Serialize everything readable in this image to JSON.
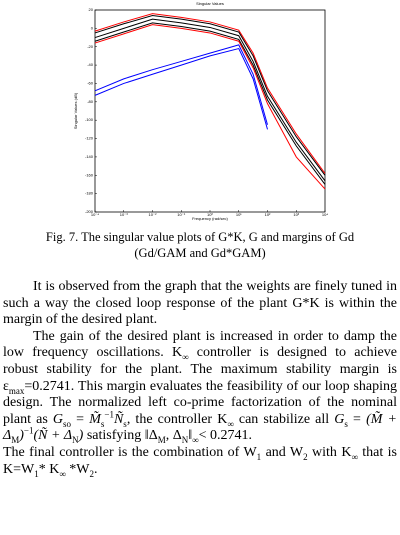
{
  "figure": {
    "type": "line",
    "title": "Singular Values",
    "xlabel": "Frequency (rad/sec)",
    "ylabel": "Singular Values (dB)",
    "x": [
      -4,
      -3,
      -2,
      -1,
      0,
      1,
      1.5,
      2,
      3,
      4
    ],
    "xlim": [
      -4,
      4
    ],
    "ylim": [
      -200,
      20
    ],
    "xticks": [
      {
        "value": -4,
        "label": "10⁻⁴"
      },
      {
        "value": -3,
        "label": "10⁻³"
      },
      {
        "value": -2,
        "label": "10⁻²"
      },
      {
        "value": -1,
        "label": "10⁻¹"
      },
      {
        "value": 0,
        "label": "10⁰"
      },
      {
        "value": 1,
        "label": "10¹"
      },
      {
        "value": 2,
        "label": "10²"
      },
      {
        "value": 3,
        "label": "10³"
      },
      {
        "value": 4,
        "label": "10⁴"
      }
    ],
    "yticks": [
      -200,
      -180,
      -160,
      -140,
      -120,
      -100,
      -80,
      -60,
      -40,
      -20,
      0,
      20
    ],
    "series": [
      {
        "color": "#ff0000",
        "values": [
          -3,
          7,
          16,
          12,
          7,
          -2,
          -27,
          -65,
          -115,
          -158
        ]
      },
      {
        "color": "#000000",
        "values": [
          -5,
          5,
          14,
          10,
          5,
          -4,
          -30,
          -68,
          -118,
          -160
        ]
      },
      {
        "color": "#000000",
        "values": [
          -10,
          0,
          10,
          6,
          1,
          -8,
          -36,
          -74,
          -124,
          -166
        ]
      },
      {
        "color": "#000000",
        "values": [
          -14,
          -4,
          6,
          2,
          -3,
          -12,
          -40,
          -78,
          -128,
          -170
        ]
      },
      {
        "color": "#ff0000",
        "values": [
          -16,
          -6,
          4,
          0,
          -5,
          -14,
          -43,
          -82,
          -140,
          -175
        ]
      },
      {
        "color": "#0000ff",
        "values": [
          -68,
          -55,
          -45,
          -36,
          -27,
          -18,
          -50,
          -105,
          null,
          null
        ]
      },
      {
        "color": "#0000ff",
        "values": [
          -73,
          -60,
          -50,
          -40,
          -30,
          -22,
          -55,
          -110,
          null,
          null
        ]
      }
    ]
  },
  "caption": [
    "Fig. 7. The singular value plots of G*K, G and margins of Gd",
    "(Gd/GAM and Gd*GAM)"
  ],
  "paragraphs": [
    {
      "runs": [
        {
          "text": "It is observed from the graph that the weights are finely tuned in such a way the closed loop response of the plant G*K is within the margin of the desired plant."
        }
      ]
    },
    {
      "runs": [
        {
          "text": "The gain of the desired plant is increased in order to damp the low frequency oscillations. K"
        },
        {
          "text": "∞",
          "style": "sub"
        },
        {
          "text": " controller is designed to achieve robust stability for the plant. The maximum stability margin is ε"
        },
        {
          "text": "max",
          "style": "sub"
        },
        {
          "text": "=0.2741. This margin evaluates the feasibility of our loop shaping design. The normalized left co-prime factorization of the nominal plant as "
        },
        {
          "text": "G",
          "style": "italic"
        },
        {
          "text": "so",
          "style": "sub"
        },
        {
          "text": " = "
        },
        {
          "text": "M̃",
          "style": "italic"
        },
        {
          "text": "s",
          "style": "sub"
        },
        {
          "text": "−1",
          "style": "sup"
        },
        {
          "text": "Ñ",
          "style": "italic"
        },
        {
          "text": "s",
          "style": "sub"
        },
        {
          "text": ", the controller K"
        },
        {
          "text": "∞",
          "style": "sub"
        },
        {
          "text": " can stabilize all "
        },
        {
          "text": "G",
          "style": "italic"
        },
        {
          "text": "s",
          "style": "sub"
        },
        {
          "text": " = "
        },
        {
          "text": "(M̃ + Δ",
          "style": "italic"
        },
        {
          "text": "M",
          "style": "sub"
        },
        {
          "text": ")",
          "style": "italic"
        },
        {
          "text": "−1",
          "style": "sup"
        },
        {
          "text": "(Ñ + Δ",
          "style": "italic"
        },
        {
          "text": "N",
          "style": "sub"
        },
        {
          "text": ")",
          "style": "italic"
        },
        {
          "text": " satisfying ‖Δ"
        },
        {
          "text": "M",
          "style": "sub"
        },
        {
          "text": ", Δ"
        },
        {
          "text": "N",
          "style": "sub"
        },
        {
          "text": "‖"
        },
        {
          "text": "∞",
          "style": "sub"
        },
        {
          "text": "< 0.2741."
        }
      ]
    },
    {
      "runs": [
        {
          "text": "The final controller is the combination of W"
        },
        {
          "text": "1",
          "style": "sub"
        },
        {
          "text": " and W"
        },
        {
          "text": "2",
          "style": "sub"
        },
        {
          "text": " with K"
        },
        {
          "text": "∞",
          "style": "sub"
        },
        {
          "text": " that is K=W"
        },
        {
          "text": "1",
          "style": "sub"
        },
        {
          "text": "* K"
        },
        {
          "text": "∞",
          "style": "sub"
        },
        {
          "text": " *W"
        },
        {
          "text": "2",
          "style": "sub"
        },
        {
          "text": "."
        }
      ]
    }
  ]
}
